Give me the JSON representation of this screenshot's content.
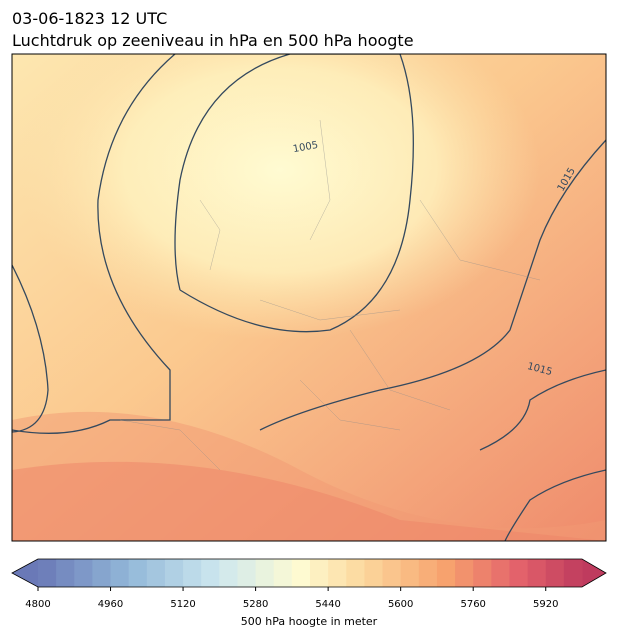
{
  "header": {
    "title": "03-06-1823 12 UTC",
    "subtitle": "Luchtdruk op zeeniveau in hPa en 500 hPa hoogte"
  },
  "map": {
    "contour_labels": [
      "1005",
      "1015",
      "1015"
    ]
  },
  "colorbar": {
    "label": "500 hPa hoogte in meter",
    "range": [
      4800,
      6000
    ],
    "ticks": [
      4800,
      4960,
      5120,
      5280,
      5440,
      5600,
      5760,
      5920
    ]
  }
}
